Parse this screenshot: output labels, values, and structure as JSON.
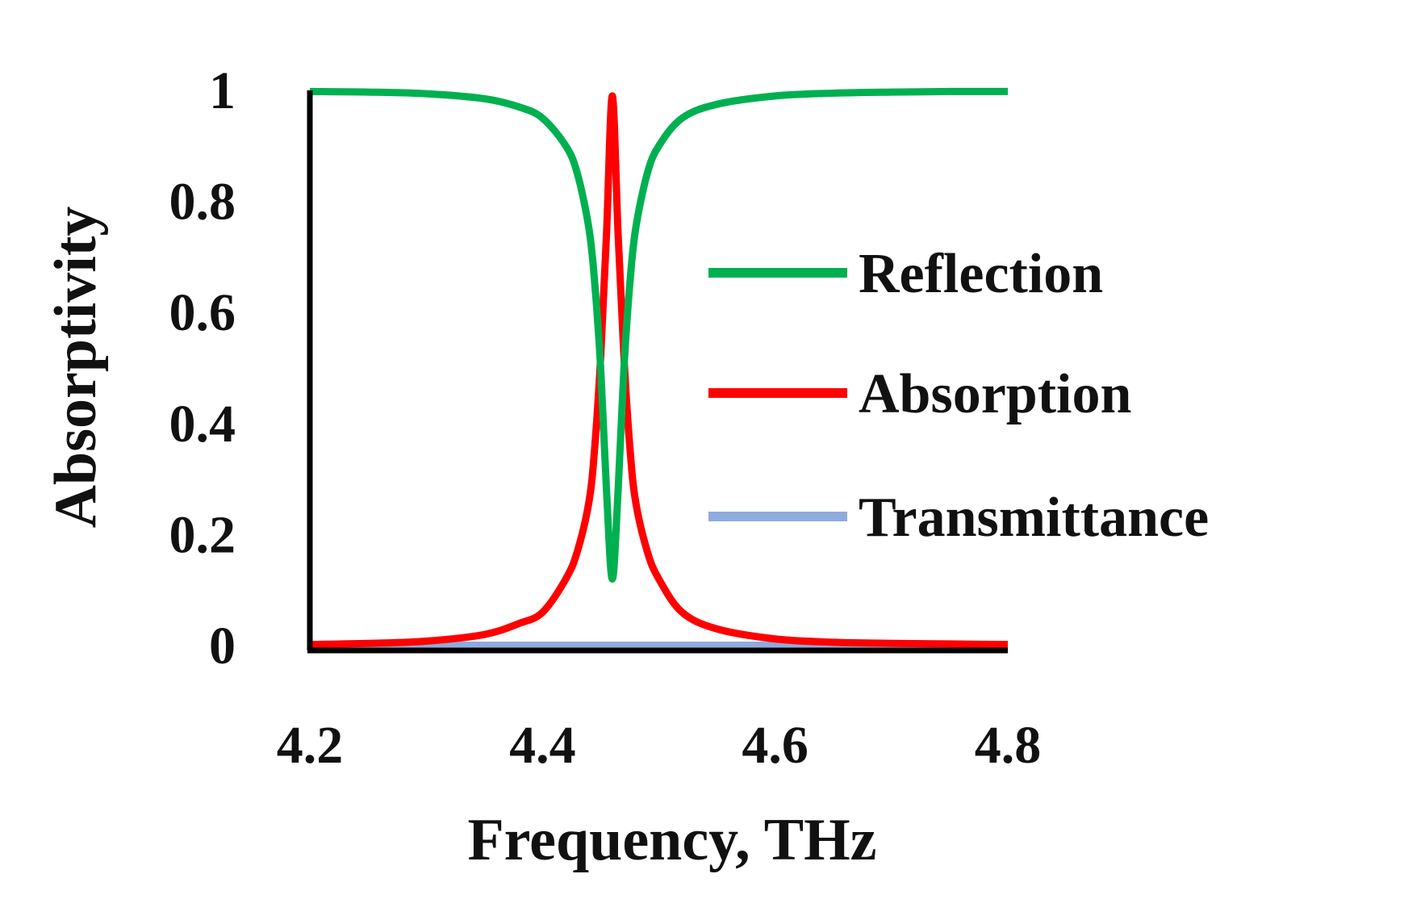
{
  "chart_data": {
    "type": "line",
    "xlabel": "Frequency, THz",
    "ylabel": "Absorptivity",
    "xlim": [
      4.2,
      4.8
    ],
    "ylim": [
      0,
      1
    ],
    "x_ticks": [
      "4.2",
      "4.4",
      "4.6",
      "4.8"
    ],
    "y_ticks": [
      "0",
      "0.2",
      "0.4",
      "0.6",
      "0.8",
      "1"
    ],
    "grid": false,
    "legend_position": "right",
    "series": [
      {
        "name": "Reflection",
        "color": "#00b050",
        "x": [
          4.2,
          4.25,
          4.3,
          4.35,
          4.38,
          4.4,
          4.42,
          4.43,
          4.44,
          4.445,
          4.45,
          4.455,
          4.46,
          4.465,
          4.47,
          4.475,
          4.48,
          4.49,
          4.5,
          4.52,
          4.55,
          4.6,
          4.65,
          4.7,
          4.75,
          4.8
        ],
        "values": [
          0.998,
          0.997,
          0.994,
          0.985,
          0.97,
          0.95,
          0.9,
          0.85,
          0.75,
          0.65,
          0.5,
          0.28,
          0.12,
          0.28,
          0.5,
          0.65,
          0.75,
          0.85,
          0.9,
          0.95,
          0.975,
          0.99,
          0.995,
          0.997,
          0.998,
          0.998
        ]
      },
      {
        "name": "Absorption",
        "color": "#ff0000",
        "x": [
          4.2,
          4.25,
          4.3,
          4.35,
          4.38,
          4.4,
          4.42,
          4.43,
          4.44,
          4.445,
          4.45,
          4.455,
          4.46,
          4.465,
          4.47,
          4.475,
          4.48,
          4.49,
          4.5,
          4.52,
          4.55,
          4.6,
          4.65,
          4.7,
          4.75,
          4.8
        ],
        "values": [
          0.002,
          0.004,
          0.008,
          0.02,
          0.04,
          0.06,
          0.12,
          0.17,
          0.26,
          0.36,
          0.52,
          0.74,
          0.99,
          0.74,
          0.52,
          0.36,
          0.26,
          0.17,
          0.12,
          0.06,
          0.03,
          0.012,
          0.006,
          0.004,
          0.003,
          0.002
        ]
      },
      {
        "name": "Transmittance",
        "color": "#8faadc",
        "x": [
          4.2,
          4.8
        ],
        "values": [
          0.0,
          0.0
        ]
      }
    ]
  }
}
